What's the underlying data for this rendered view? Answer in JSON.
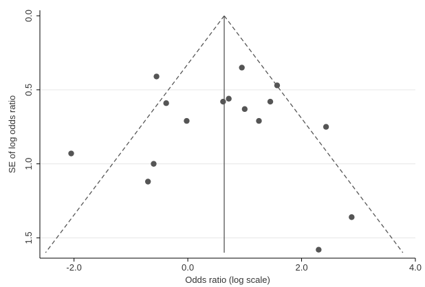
{
  "chart_data": {
    "type": "scatter",
    "title": "",
    "xlabel": "Odds ratio (log scale)",
    "ylabel": "SE of log odds ratio",
    "xlim": [
      -2.6,
      4.0
    ],
    "ylim": [
      0.0,
      1.6
    ],
    "y_reversed": true,
    "x_ticks": [
      -2.0,
      0.0,
      2.0,
      4.0
    ],
    "x_tick_labels": [
      "-2.0",
      "0.0",
      "2.0",
      "4.0"
    ],
    "y_ticks": [
      0.0,
      0.5,
      1.0,
      1.5
    ],
    "y_tick_labels": [
      "0.0",
      "0.5",
      "1.0",
      "1.5"
    ],
    "grid": "horizontal",
    "pooled_estimate": 0.64,
    "funnel": {
      "apex": [
        0.64,
        0.0
      ],
      "left_base": [
        -2.5,
        1.6
      ],
      "right_base": [
        3.78,
        1.6
      ]
    },
    "points": [
      {
        "x": -2.05,
        "y": 0.93
      },
      {
        "x": -0.55,
        "y": 0.41
      },
      {
        "x": -0.38,
        "y": 0.59
      },
      {
        "x": -0.6,
        "y": 1.0
      },
      {
        "x": -0.7,
        "y": 1.12
      },
      {
        "x": -0.02,
        "y": 0.71
      },
      {
        "x": 0.62,
        "y": 0.58
      },
      {
        "x": 0.72,
        "y": 0.56
      },
      {
        "x": 0.95,
        "y": 0.35
      },
      {
        "x": 1.0,
        "y": 0.63
      },
      {
        "x": 1.25,
        "y": 0.71
      },
      {
        "x": 1.45,
        "y": 0.58
      },
      {
        "x": 1.57,
        "y": 0.47
      },
      {
        "x": 2.43,
        "y": 0.75
      },
      {
        "x": 2.3,
        "y": 1.58
      },
      {
        "x": 2.88,
        "y": 1.36
      }
    ],
    "colors": {
      "points": "#555555",
      "lines": "#555555",
      "grid": "#e6e6e6"
    }
  }
}
